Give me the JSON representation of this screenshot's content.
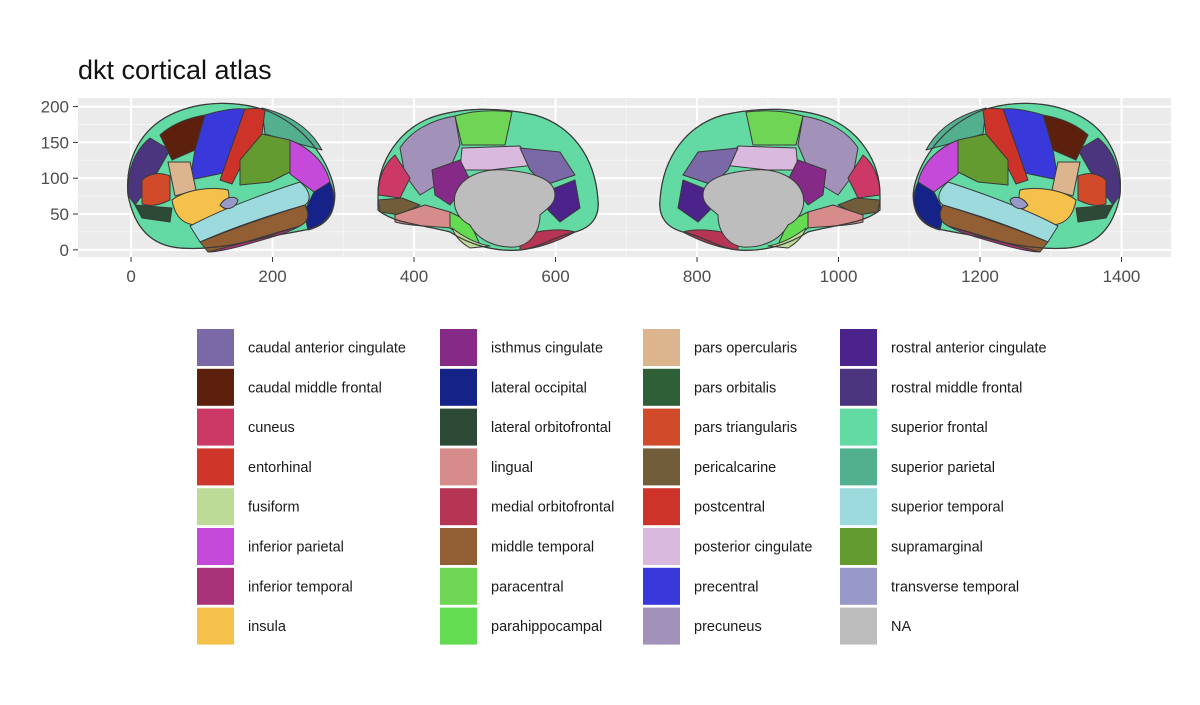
{
  "chart_data": {
    "type": "map",
    "title": "dkt cortical atlas",
    "xlabel": "",
    "ylabel": "",
    "xlim": [
      -75,
      1470
    ],
    "ylim": [
      -10,
      212
    ],
    "x_ticks": [
      0,
      200,
      400,
      600,
      800,
      1000,
      1200,
      1400
    ],
    "y_ticks": [
      0,
      50,
      100,
      150,
      200
    ],
    "grid": true,
    "legend_position": "bottom",
    "views": [
      "left lateral",
      "left medial",
      "right medial",
      "right lateral"
    ],
    "legend": [
      {
        "label": "caudal anterior cingulate",
        "color": "#7b68a6"
      },
      {
        "label": "caudal middle frontal",
        "color": "#5c200c"
      },
      {
        "label": "cuneus",
        "color": "#cc3966"
      },
      {
        "label": "entorhinal",
        "color": "#cd3628"
      },
      {
        "label": "fusiform",
        "color": "#bcdb96"
      },
      {
        "label": "inferior parietal",
        "color": "#c64ad9"
      },
      {
        "label": "inferior temporal",
        "color": "#a83378"
      },
      {
        "label": "insula",
        "color": "#f6c14a"
      },
      {
        "label": "isthmus cingulate",
        "color": "#852b87"
      },
      {
        "label": "lateral occipital",
        "color": "#152288"
      },
      {
        "label": "lateral orbitofrontal",
        "color": "#2c4a35"
      },
      {
        "label": "lingual",
        "color": "#d58c8a"
      },
      {
        "label": "medial orbitofrontal",
        "color": "#b63554"
      },
      {
        "label": "middle temporal",
        "color": "#925f34"
      },
      {
        "label": "paracentral",
        "color": "#6fd655"
      },
      {
        "label": "parahippocampal",
        "color": "#64dc52"
      },
      {
        "label": "pars opercularis",
        "color": "#dcb48e"
      },
      {
        "label": "pars orbitalis",
        "color": "#2f5f36"
      },
      {
        "label": "pars triangularis",
        "color": "#d14b2b"
      },
      {
        "label": "pericalcarine",
        "color": "#725d3a"
      },
      {
        "label": "postcentral",
        "color": "#cd3328"
      },
      {
        "label": "posterior cingulate",
        "color": "#d9b9dd"
      },
      {
        "label": "precentral",
        "color": "#3938db"
      },
      {
        "label": "precuneus",
        "color": "#a291b8"
      },
      {
        "label": "rostral anterior cingulate",
        "color": "#4c228b"
      },
      {
        "label": "rostral middle frontal",
        "color": "#4b357e"
      },
      {
        "label": "superior frontal",
        "color": "#63d9a3"
      },
      {
        "label": "superior parietal",
        "color": "#52b08f"
      },
      {
        "label": "superior temporal",
        "color": "#9ddade"
      },
      {
        "label": "supramarginal",
        "color": "#649b31"
      },
      {
        "label": "transverse temporal",
        "color": "#9999c9"
      },
      {
        "label": "NA",
        "color": "#bdbdbd"
      }
    ]
  }
}
